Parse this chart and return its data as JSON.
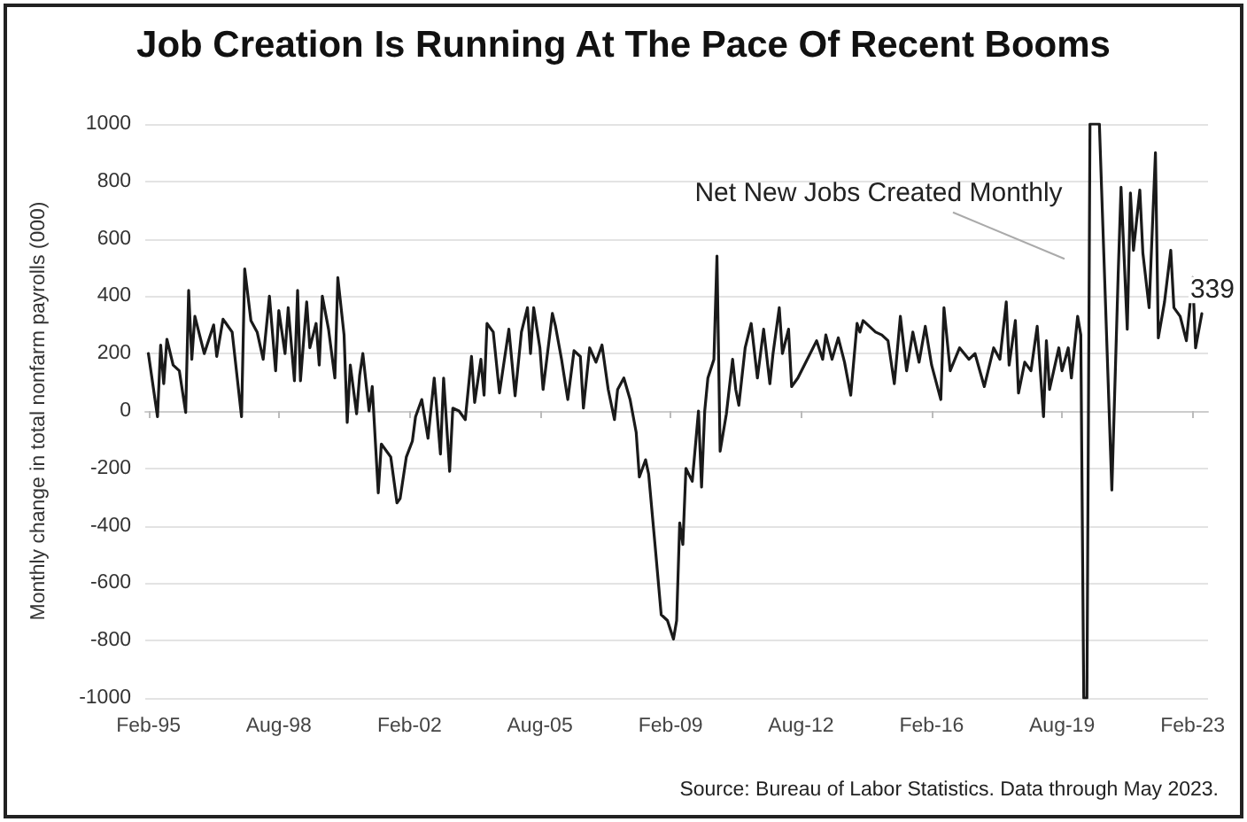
{
  "chart_data": {
    "type": "line",
    "title": "Job Creation Is Running At The Pace Of Recent Booms",
    "ylabel": "Monthly change in total nonfarm payrolls (000)",
    "annotations": [
      "Source: Bureau of Labor Statistics. Data through May 2023."
    ],
    "x": [
      "1995-02",
      "1995-05",
      "1995-06",
      "1995-07",
      "1995-08",
      "1995-10",
      "1995-12",
      "1996-02",
      "1996-03",
      "1996-04",
      "1996-05",
      "1996-08",
      "1996-11",
      "1996-12",
      "1997-02",
      "1997-05",
      "1997-08",
      "1997-09",
      "1997-11",
      "1998-01",
      "1998-03",
      "1998-05",
      "1998-07",
      "1998-08",
      "1998-10",
      "1998-11",
      "1999-01",
      "1999-02",
      "1999-03",
      "1999-05",
      "1999-06",
      "1999-08",
      "1999-09",
      "1999-10",
      "1999-12",
      "2000-02",
      "2000-03",
      "2000-05",
      "2000-06",
      "2000-07",
      "2000-09",
      "2000-10",
      "2000-11",
      "2001-01",
      "2001-02",
      "2001-04",
      "2001-05",
      "2001-08",
      "2001-10",
      "2001-11",
      "2002-01",
      "2002-03",
      "2002-04",
      "2002-06",
      "2002-08",
      "2002-10",
      "2002-12",
      "2003-01",
      "2003-03",
      "2003-04",
      "2003-06",
      "2003-08",
      "2003-10",
      "2003-11",
      "2004-01",
      "2004-02",
      "2004-03",
      "2004-05",
      "2004-07",
      "2004-10",
      "2004-12",
      "2005-02",
      "2005-04",
      "2005-05",
      "2005-06",
      "2005-08",
      "2005-09",
      "2005-12",
      "2006-01",
      "2006-03",
      "2006-05",
      "2006-07",
      "2006-09",
      "2006-10",
      "2006-12",
      "2007-02",
      "2007-04",
      "2007-06",
      "2007-08",
      "2007-09",
      "2007-11",
      "2008-01",
      "2008-03",
      "2008-04",
      "2008-06",
      "2008-07",
      "2008-09",
      "2008-11",
      "2009-01",
      "2009-03",
      "2009-04",
      "2009-05",
      "2009-06",
      "2009-07",
      "2009-09",
      "2009-11",
      "2009-12",
      "2010-01",
      "2010-02",
      "2010-04",
      "2010-05",
      "2010-06",
      "2010-08",
      "2010-10",
      "2010-11",
      "2010-12",
      "2011-02",
      "2011-04",
      "2011-06",
      "2011-08",
      "2011-10",
      "2011-11",
      "2012-01",
      "2012-02",
      "2012-04",
      "2012-05",
      "2012-07",
      "2012-10",
      "2013-01",
      "2013-03",
      "2013-04",
      "2013-06",
      "2013-08",
      "2013-10",
      "2013-12",
      "2014-02",
      "2014-03",
      "2014-04",
      "2014-06",
      "2014-08",
      "2014-10",
      "2014-12",
      "2015-02",
      "2015-04",
      "2015-06",
      "2015-08",
      "2015-10",
      "2015-12",
      "2016-02",
      "2016-05",
      "2016-06",
      "2016-08",
      "2016-11",
      "2017-02",
      "2017-04",
      "2017-07",
      "2017-10",
      "2017-12",
      "2018-02",
      "2018-03",
      "2018-05",
      "2018-06",
      "2018-08",
      "2018-10",
      "2018-12",
      "2019-02",
      "2019-03",
      "2019-04",
      "2019-07",
      "2019-08",
      "2019-10",
      "2019-11",
      "2020-01",
      "2020-02",
      "2020-03",
      "2020-04",
      "2020-05",
      "2020-08",
      "2020-12",
      "2021-02",
      "2021-03",
      "2021-05",
      "2021-06",
      "2021-07",
      "2021-09",
      "2021-10",
      "2021-12",
      "2022-02",
      "2022-03",
      "2022-05",
      "2022-07",
      "2022-08",
      "2022-10",
      "2022-12",
      "2023-02",
      "2023-03",
      "2023-05"
    ],
    "series": [
      {
        "name": "Net New Jobs Created Monthly",
        "color": "#1a1a1a",
        "values": [
          200,
          -20,
          230,
          95,
          250,
          160,
          140,
          -5,
          420,
          180,
          330,
          200,
          300,
          190,
          320,
          275,
          -20,
          495,
          315,
          275,
          180,
          400,
          140,
          350,
          200,
          360,
          105,
          420,
          105,
          380,
          220,
          305,
          160,
          400,
          285,
          115,
          465,
          265,
          -40,
          160,
          -10,
          125,
          200,
          0,
          85,
          -285,
          -115,
          -160,
          -320,
          -305,
          -160,
          -105,
          -20,
          40,
          -95,
          115,
          -150,
          115,
          -210,
          10,
          0,
          -30,
          190,
          30,
          180,
          55,
          305,
          275,
          63,
          285,
          53,
          275,
          360,
          200,
          360,
          220,
          75,
          340,
          295,
          180,
          40,
          210,
          190,
          10,
          220,
          170,
          230,
          75,
          -30,
          75,
          115,
          40,
          -75,
          -230,
          -170,
          -220,
          -465,
          -710,
          -730,
          -795,
          -730,
          -390,
          -465,
          -200,
          -245,
          0,
          -265,
          0,
          115,
          180,
          540,
          -140,
          -10,
          180,
          75,
          20,
          220,
          305,
          115,
          285,
          95,
          200,
          360,
          200,
          285,
          85,
          115,
          180,
          245,
          180,
          265,
          180,
          255,
          170,
          55,
          305,
          275,
          315,
          295,
          275,
          265,
          245,
          95,
          330,
          140,
          275,
          170,
          295,
          160,
          40,
          360,
          140,
          220,
          180,
          200,
          85,
          220,
          180,
          380,
          160,
          315,
          63,
          170,
          140,
          295,
          -20,
          245,
          75,
          220,
          140,
          220,
          115,
          330,
          265,
          -1000,
          -1000,
          1000,
          1000,
          -275,
          475,
          780,
          285,
          760,
          560,
          770,
          550,
          360,
          900,
          255,
          380,
          560,
          360,
          330,
          245,
          465,
          220,
          339
        ],
        "value_labels": [
          null,
          null,
          null,
          null,
          null,
          null,
          null,
          null,
          null,
          null,
          null,
          null,
          null,
          null,
          null,
          null,
          null,
          null,
          null,
          null,
          null,
          null,
          null,
          null,
          null,
          null,
          null,
          null,
          null,
          null,
          null,
          null,
          null,
          null,
          null,
          null,
          null,
          null,
          null,
          null,
          null,
          null,
          null,
          null,
          null,
          null,
          null,
          null,
          null,
          null,
          null,
          null,
          null,
          null,
          null,
          null,
          null,
          null,
          null,
          null,
          null,
          null,
          null,
          null,
          null,
          null,
          null,
          null,
          null,
          null,
          null,
          null,
          null,
          null,
          null,
          null,
          null,
          null,
          null,
          null,
          null,
          null,
          null,
          null,
          null,
          null,
          null,
          null,
          null,
          null,
          null,
          null,
          null,
          null,
          null,
          null,
          null,
          null,
          null,
          null,
          null,
          null,
          null,
          null,
          null,
          null,
          null,
          null,
          null,
          null,
          null,
          null,
          null,
          null,
          null,
          null,
          null,
          null,
          null,
          null,
          null,
          null,
          null,
          null,
          null,
          null,
          null,
          null,
          null,
          null,
          null,
          null,
          null,
          null,
          null,
          null,
          null,
          null,
          null,
          null,
          null,
          null,
          null,
          null,
          null,
          null,
          null,
          null,
          null,
          null,
          null,
          null,
          null,
          null,
          null,
          null,
          null,
          null,
          null,
          null,
          null,
          null,
          null,
          null,
          null,
          null,
          null,
          null,
          null,
          null,
          null,
          null,
          null,
          null,
          null,
          null,
          null,
          null,
          null,
          null,
          null,
          null,
          null,
          null,
          null,
          null,
          null,
          null,
          null,
          null,
          null,
          null,
          null,
          null,
          null,
          null,
          "339"
        ]
      }
    ],
    "xlim": [
      "1995-01",
      "2023-07"
    ],
    "xticks": [
      {
        "value": "1995-02",
        "label": "Feb-95"
      },
      {
        "value": "1998-08",
        "label": "Aug-98"
      },
      {
        "value": "2002-02",
        "label": "Feb-02"
      },
      {
        "value": "2005-08",
        "label": "Aug-05"
      },
      {
        "value": "2009-02",
        "label": "Feb-09"
      },
      {
        "value": "2012-08",
        "label": "Aug-12"
      },
      {
        "value": "2016-02",
        "label": "Feb-16"
      },
      {
        "value": "2019-08",
        "label": "Aug-19"
      },
      {
        "value": "2023-02",
        "label": "Feb-23"
      }
    ],
    "ylim": [
      -1000,
      1000
    ],
    "yticks": [
      -1000,
      -800,
      -600,
      -400,
      -200,
      0,
      200,
      400,
      600,
      800,
      1000
    ],
    "grid": "y",
    "legend": false,
    "marker": "none",
    "line_style": "solid"
  }
}
